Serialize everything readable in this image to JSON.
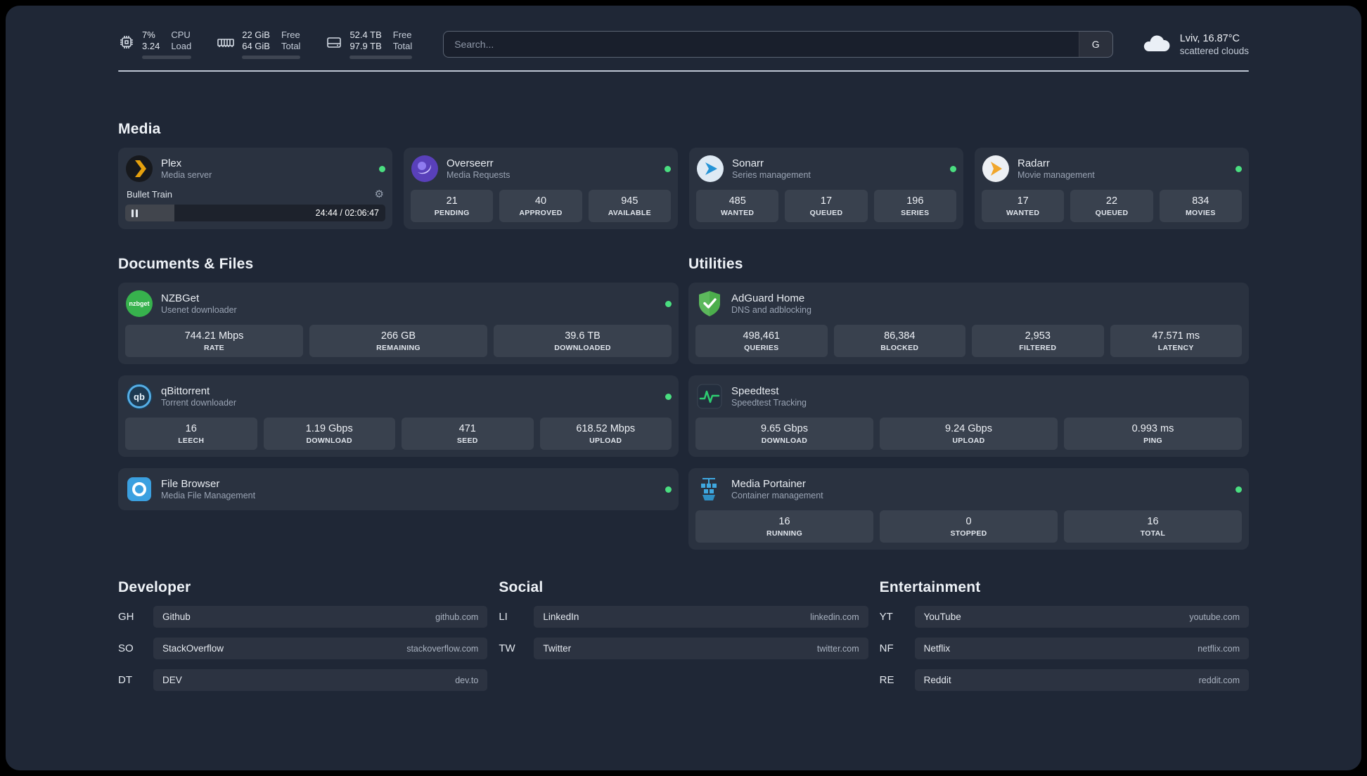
{
  "theme": {
    "background": "#1f2736",
    "card": "rgba(255,255,255,0.05)",
    "status_green": "#4ade80",
    "plex_amber": "#e5a00d"
  },
  "topbar": {
    "resources": [
      {
        "icon": "cpu-icon",
        "rows": [
          {
            "value": "7%",
            "label": "CPU"
          },
          {
            "value": "3.24",
            "label": "Load"
          }
        ],
        "progress": 7
      },
      {
        "icon": "memory-icon",
        "rows": [
          {
            "value": "22 GiB",
            "label": "Free"
          },
          {
            "value": "64 GiB",
            "label": "Total"
          }
        ],
        "progress": 66
      },
      {
        "icon": "disk-icon",
        "rows": [
          {
            "value": "52.4 TB",
            "label": "Free"
          },
          {
            "value": "97.9 TB",
            "label": "Total"
          }
        ],
        "progress": 46
      }
    ],
    "search": {
      "placeholder": "Search...",
      "provider_label": "G"
    },
    "weather": {
      "icon": "cloud-icon",
      "location": "Lviv, 16.87°C",
      "condition": "scattered clouds"
    }
  },
  "sections": {
    "media": {
      "title": "Media",
      "services": [
        {
          "name": "Plex",
          "subtitle": "Media server",
          "icon": "plex-icon",
          "status": "online",
          "player": {
            "title": "Bullet Train",
            "time": "24:44 / 02:06:47",
            "progress": 19
          }
        },
        {
          "name": "Overseerr",
          "subtitle": "Media Requests",
          "icon": "overseerr-icon",
          "status": "online",
          "stats": [
            {
              "value": "21",
              "label": "PENDING"
            },
            {
              "value": "40",
              "label": "APPROVED"
            },
            {
              "value": "945",
              "label": "AVAILABLE"
            }
          ]
        },
        {
          "name": "Sonarr",
          "subtitle": "Series management",
          "icon": "sonarr-icon",
          "status": "online",
          "stats": [
            {
              "value": "485",
              "label": "WANTED"
            },
            {
              "value": "17",
              "label": "QUEUED"
            },
            {
              "value": "196",
              "label": "SERIES"
            }
          ]
        },
        {
          "name": "Radarr",
          "subtitle": "Movie management",
          "icon": "radarr-icon",
          "status": "online",
          "stats": [
            {
              "value": "17",
              "label": "WANTED"
            },
            {
              "value": "22",
              "label": "QUEUED"
            },
            {
              "value": "834",
              "label": "MOVIES"
            }
          ]
        }
      ]
    },
    "documents": {
      "title": "Documents & Files",
      "services": [
        {
          "name": "NZBGet",
          "subtitle": "Usenet downloader",
          "icon": "nzbget-icon",
          "status": "online",
          "stats": [
            {
              "value": "744.21 Mbps",
              "label": "RATE"
            },
            {
              "value": "266 GB",
              "label": "REMAINING"
            },
            {
              "value": "39.6 TB",
              "label": "DOWNLOADED"
            }
          ]
        },
        {
          "name": "qBittorrent",
          "subtitle": "Torrent downloader",
          "icon": "qbittorrent-icon",
          "status": "online",
          "stats": [
            {
              "value": "16",
              "label": "LEECH"
            },
            {
              "value": "1.19 Gbps",
              "label": "DOWNLOAD"
            },
            {
              "value": "471",
              "label": "SEED"
            },
            {
              "value": "618.52 Mbps",
              "label": "UPLOAD"
            }
          ]
        },
        {
          "name": "File Browser",
          "subtitle": "Media File Management",
          "icon": "filebrowser-icon",
          "status": "online"
        }
      ]
    },
    "utilities": {
      "title": "Utilities",
      "services": [
        {
          "name": "AdGuard Home",
          "subtitle": "DNS and adblocking",
          "icon": "adguard-icon",
          "stats": [
            {
              "value": "498,461",
              "label": "QUERIES"
            },
            {
              "value": "86,384",
              "label": "BLOCKED"
            },
            {
              "value": "2,953",
              "label": "FILTERED"
            },
            {
              "value": "47.571 ms",
              "label": "LATENCY"
            }
          ]
        },
        {
          "name": "Speedtest",
          "subtitle": "Speedtest Tracking",
          "icon": "speedtest-icon",
          "stats": [
            {
              "value": "9.65 Gbps",
              "label": "DOWNLOAD"
            },
            {
              "value": "9.24 Gbps",
              "label": "UPLOAD"
            },
            {
              "value": "0.993 ms",
              "label": "PING"
            }
          ]
        },
        {
          "name": "Media Portainer",
          "subtitle": "Container management",
          "icon": "portainer-icon",
          "status": "online",
          "stats": [
            {
              "value": "16",
              "label": "RUNNING"
            },
            {
              "value": "0",
              "label": "STOPPED"
            },
            {
              "value": "16",
              "label": "TOTAL"
            }
          ]
        }
      ]
    },
    "bookmarks": [
      {
        "title": "Developer",
        "items": [
          {
            "abbr": "GH",
            "name": "Github",
            "url": "github.com"
          },
          {
            "abbr": "SO",
            "name": "StackOverflow",
            "url": "stackoverflow.com"
          },
          {
            "abbr": "DT",
            "name": "DEV",
            "url": "dev.to"
          }
        ]
      },
      {
        "title": "Social",
        "items": [
          {
            "abbr": "LI",
            "name": "LinkedIn",
            "url": "linkedin.com"
          },
          {
            "abbr": "TW",
            "name": "Twitter",
            "url": "twitter.com"
          }
        ]
      },
      {
        "title": "Entertainment",
        "items": [
          {
            "abbr": "YT",
            "name": "YouTube",
            "url": "youtube.com"
          },
          {
            "abbr": "NF",
            "name": "Netflix",
            "url": "netflix.com"
          },
          {
            "abbr": "RE",
            "name": "Reddit",
            "url": "reddit.com"
          }
        ]
      }
    ]
  }
}
